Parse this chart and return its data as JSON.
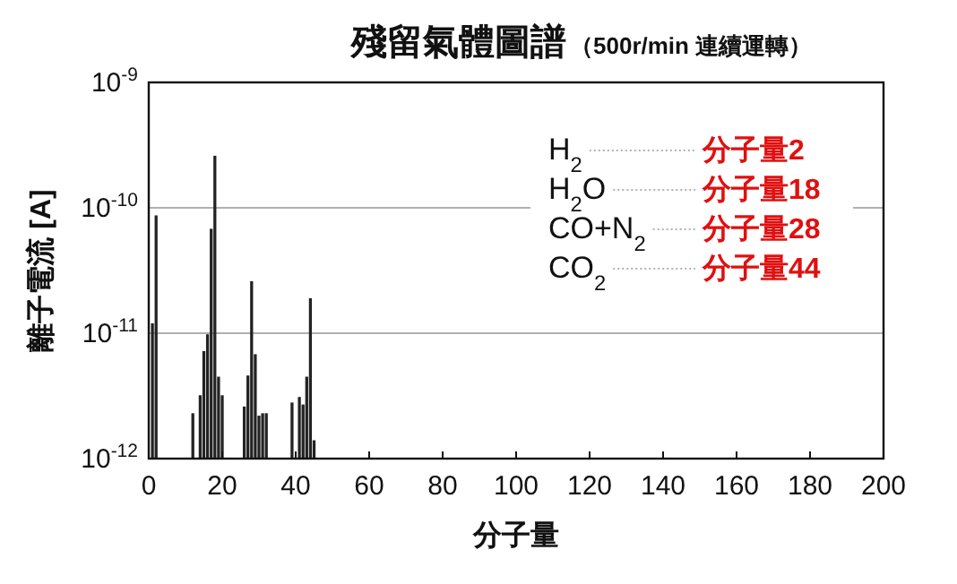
{
  "chart_data": {
    "type": "bar",
    "title": "殘留氣體圖譜",
    "subtitle": "（500r/min 連續運轉）",
    "xlabel": "分子量",
    "ylabel": "離子電流 [A]",
    "x": [
      1,
      2,
      12,
      14,
      15,
      16,
      17,
      18,
      19,
      20,
      26,
      27,
      28,
      29,
      30,
      31,
      32,
      39,
      41,
      42,
      43,
      44,
      45
    ],
    "values": [
      1.2e-11,
      8.7e-11,
      2.3e-12,
      3.2e-12,
      7.2e-12,
      9.8e-12,
      6.8e-11,
      2.6e-10,
      4.5e-12,
      3.2e-12,
      2.6e-12,
      4.6e-12,
      2.6e-11,
      6.8e-12,
      2.2e-12,
      2.3e-12,
      2.3e-12,
      2.8e-12,
      3.1e-12,
      2.7e-12,
      4.5e-12,
      1.9e-11,
      1.4e-12
    ],
    "color": "#222222",
    "log": "y",
    "grid": "y",
    "xlim": [
      0,
      200
    ],
    "xticks": [
      0,
      20,
      40,
      60,
      80,
      100,
      120,
      140,
      160,
      180,
      200
    ],
    "ylim": [
      1e-12,
      1e-09
    ],
    "yticks": [
      {
        "value": 1e-12,
        "label": "10$^{-12}$"
      },
      {
        "value": 1e-11,
        "label": "10$^{-11}$"
      },
      {
        "value": 1e-10,
        "label": "10$^{-10}$"
      },
      {
        "value": 1e-09,
        "label": "10$^{-9}$"
      }
    ],
    "annotations": [
      "H$_{2}$",
      "分子量2",
      "H$_{2}$O",
      "分子量18",
      "CO+N$_{2}$",
      "分子量28",
      "CO$_{2}$",
      "分子量44"
    ]
  }
}
